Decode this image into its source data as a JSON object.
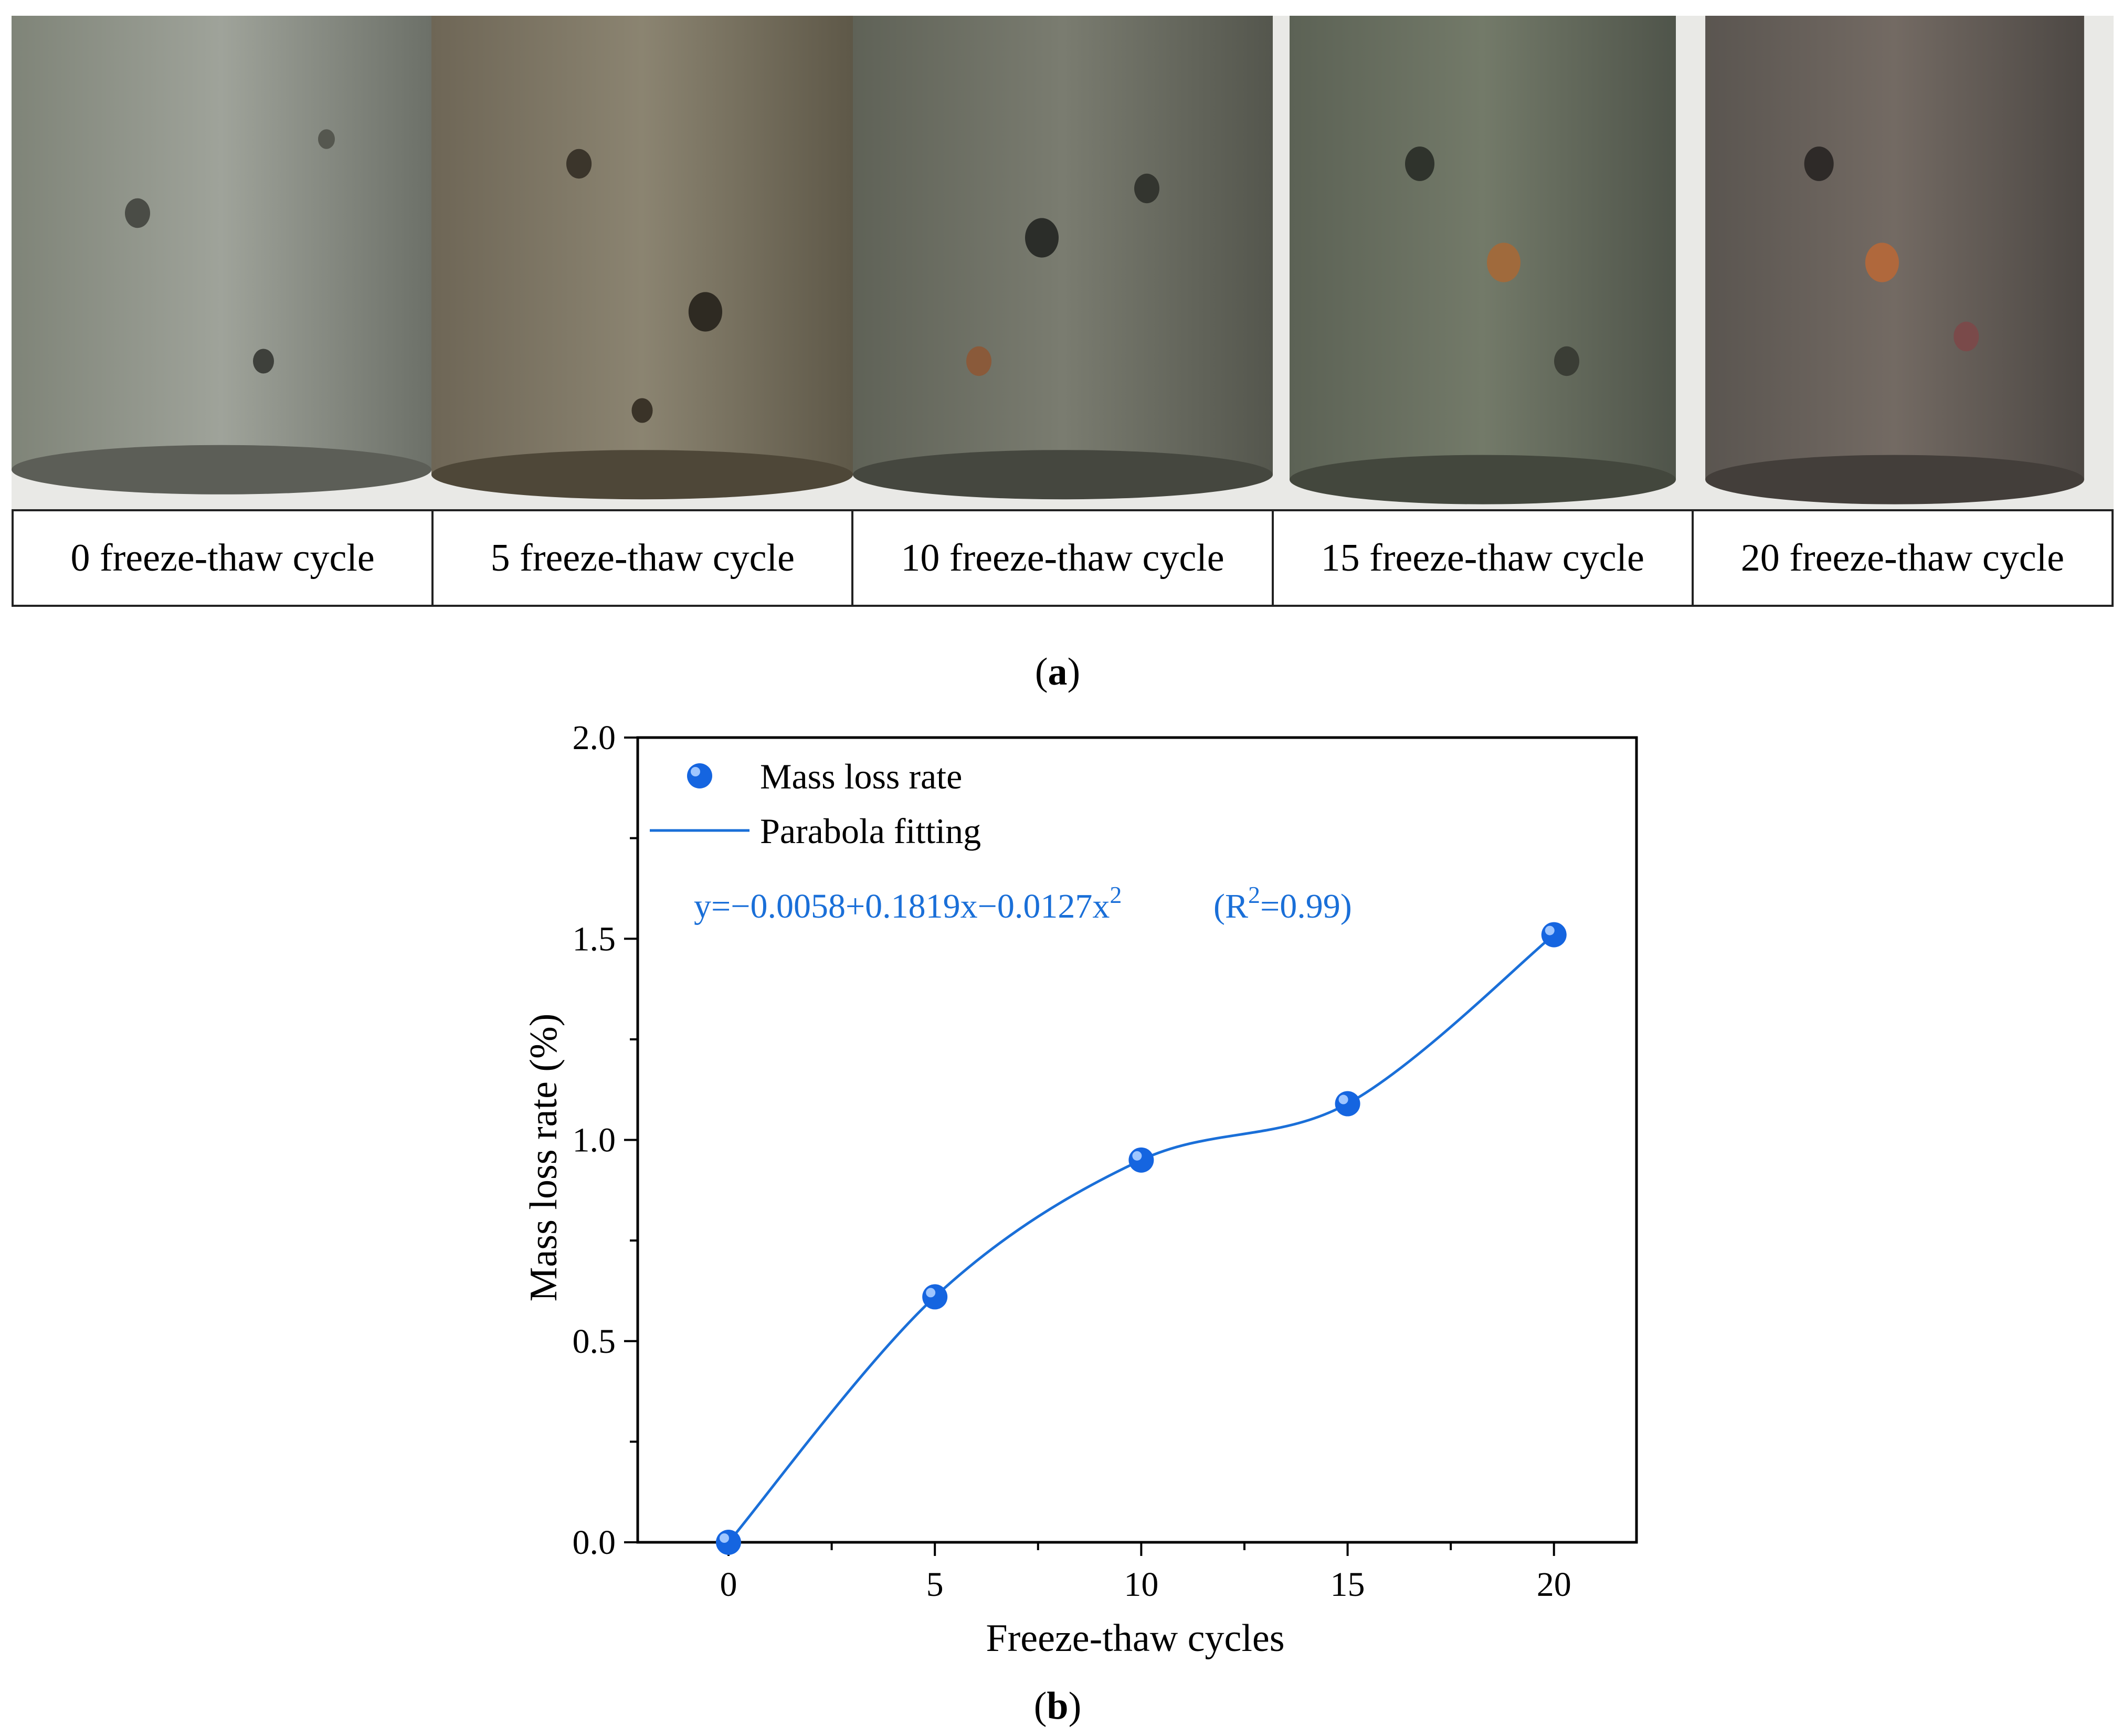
{
  "panel_a": {
    "label_open": "(",
    "label_letter": "a",
    "label_close": ")",
    "captions": [
      "0 freeze-thaw cycle",
      "5 freeze-thaw cycle",
      "10 freeze-thaw cycle",
      "15 freeze-thaw cycle",
      "20 freeze-thaw cycle"
    ]
  },
  "panel_b": {
    "label_open": "(",
    "label_letter": "b",
    "label_close": ")"
  },
  "colors": {
    "series": "#1a6fd8",
    "marker": "#1565e0",
    "axis": "#000000"
  },
  "chart_data": {
    "type": "scatter",
    "xlabel": "Freeze-thaw cycles",
    "ylabel": "Mass loss rate (%)",
    "xlim": [
      -2.2,
      22
    ],
    "ylim": [
      0,
      2.0
    ],
    "xticks": [
      "0",
      "5",
      "10",
      "15",
      "20"
    ],
    "yticks": [
      "0.0",
      "0.5",
      "1.0",
      "1.5",
      "2.0"
    ],
    "grid": false,
    "legend_position": "top-left",
    "series": [
      {
        "name": "Mass loss rate",
        "kind": "markers",
        "x": [
          0,
          5,
          10,
          15,
          20
        ],
        "y": [
          0.0,
          0.61,
          0.95,
          1.09,
          1.51
        ]
      },
      {
        "name": "Parabola fitting",
        "kind": "line"
      }
    ],
    "annotation": {
      "equation_main": "y=−0.0058+0.1819x−0.0127x",
      "equation_exp": "2",
      "r2_open": "(R",
      "r2_exp": "2",
      "r2_close": "=0.99)"
    }
  }
}
